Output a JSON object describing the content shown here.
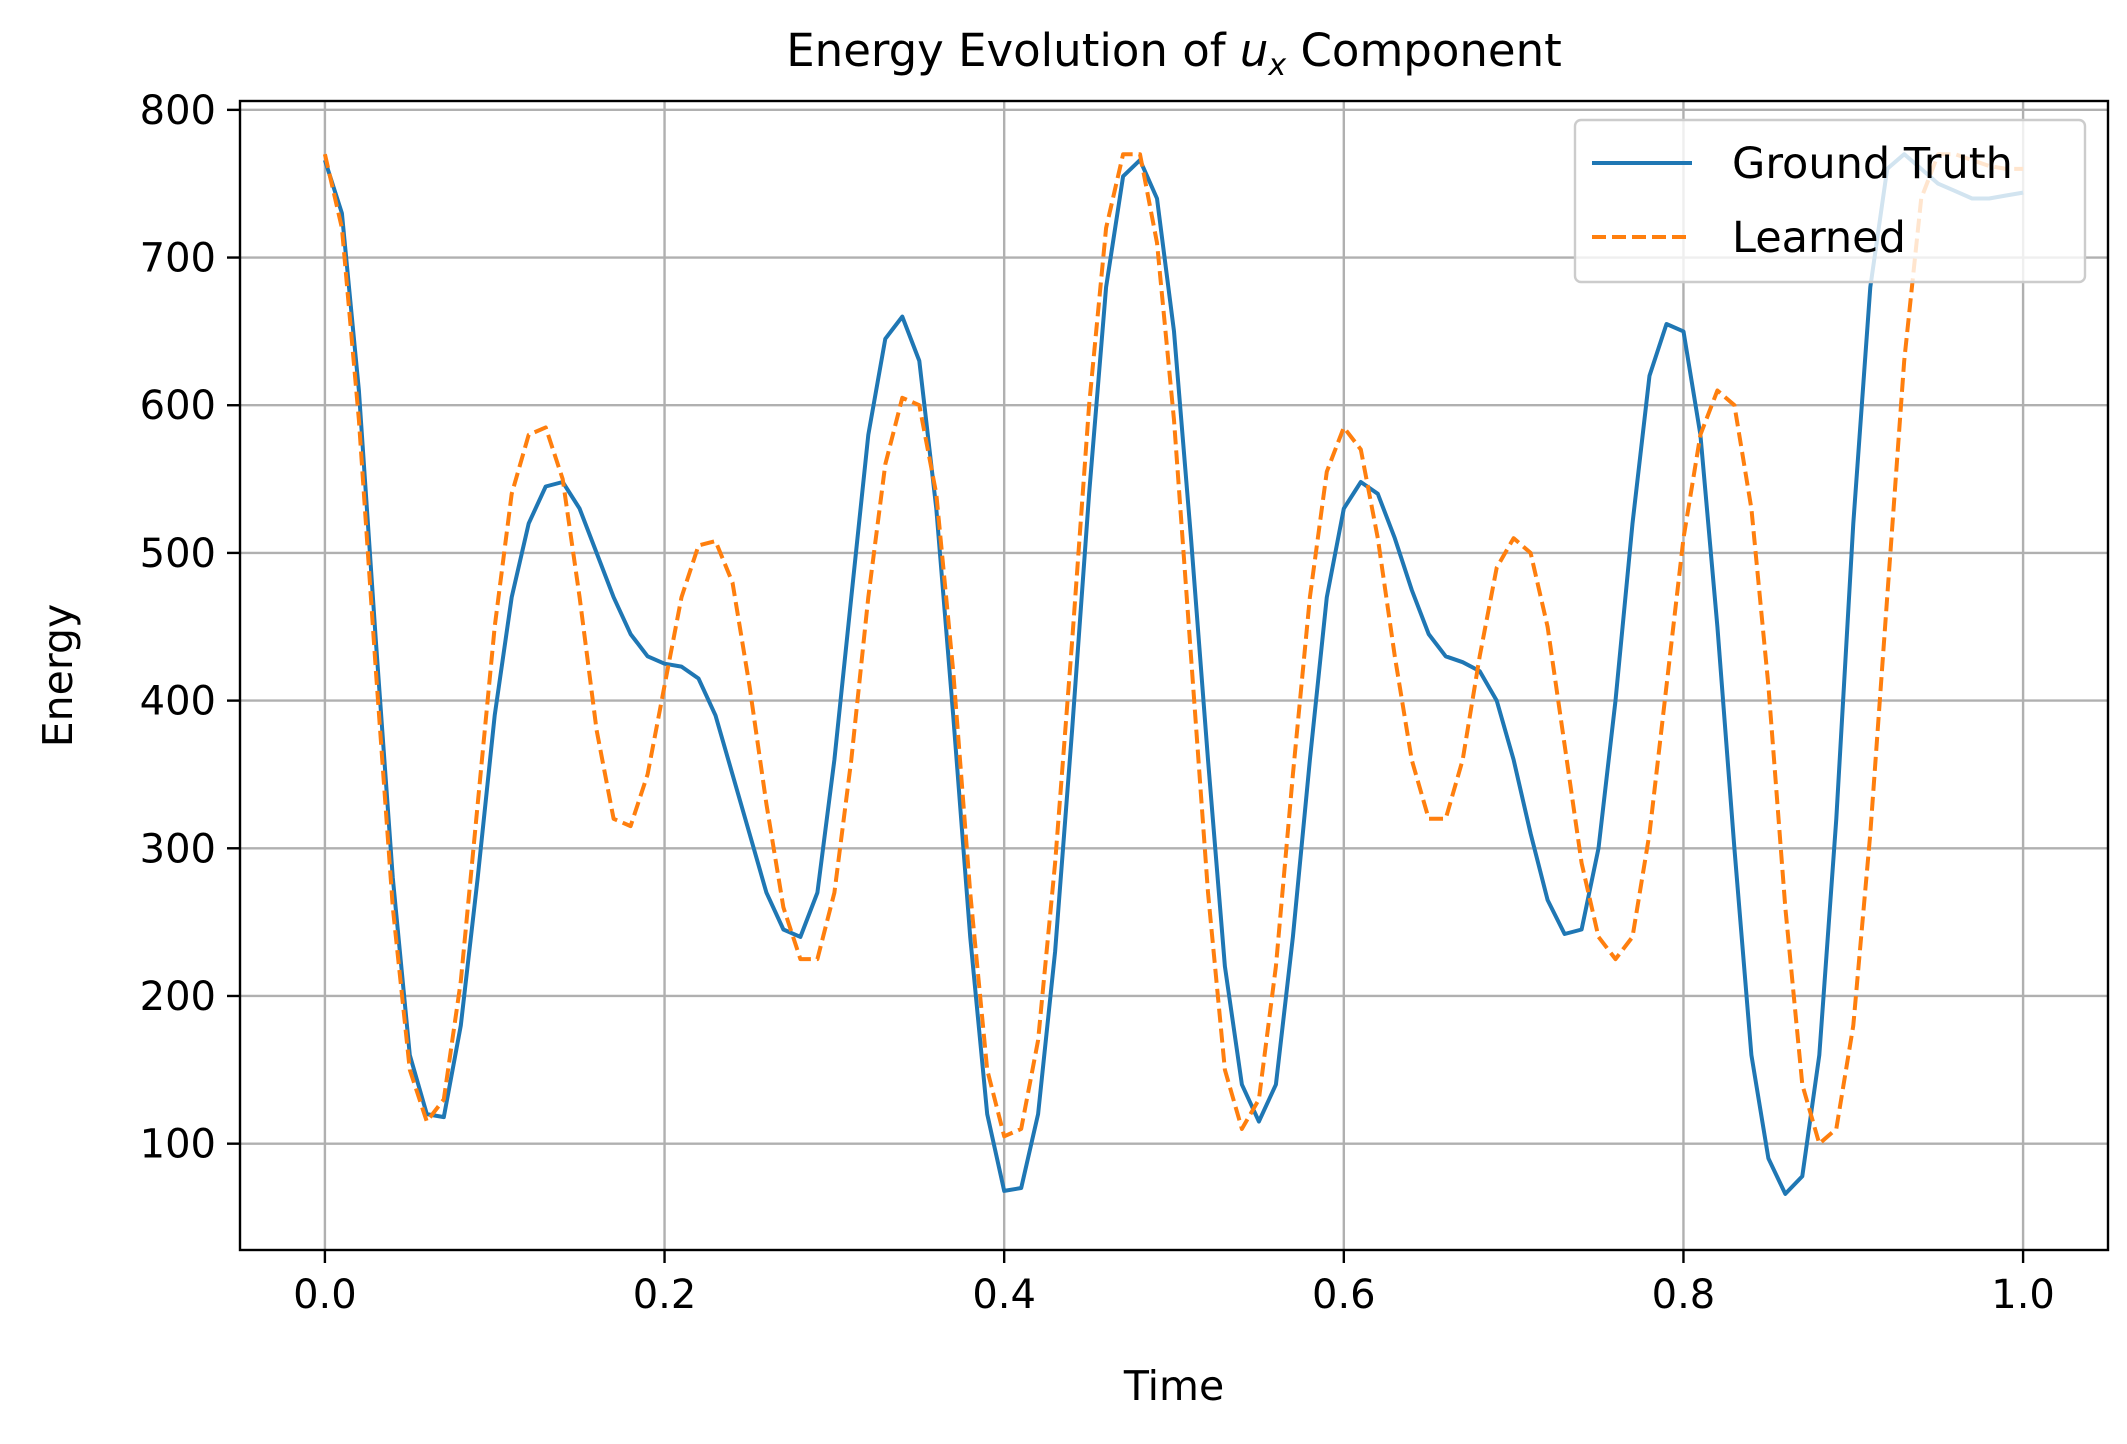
{
  "chart_data": {
    "type": "line",
    "title": {
      "prefix": "Energy Evolution of ",
      "math_var": "u",
      "math_sub": "x",
      "suffix": " Component"
    },
    "xlabel": "Time",
    "ylabel": "Energy",
    "xlim": [
      -0.05,
      1.05
    ],
    "ylim": [
      28,
      806
    ],
    "xticks": [
      0.0,
      0.2,
      0.4,
      0.6,
      0.8,
      1.0
    ],
    "xtick_labels": [
      "0.0",
      "0.2",
      "0.4",
      "0.6",
      "0.8",
      "1.0"
    ],
    "yticks": [
      100,
      200,
      300,
      400,
      500,
      600,
      700,
      800
    ],
    "ytick_labels": [
      "100",
      "200",
      "300",
      "400",
      "500",
      "600",
      "700",
      "800"
    ],
    "grid": true,
    "legend_position": "top-right",
    "series": [
      {
        "name": "Ground Truth",
        "color": "#1f77b4",
        "dash": "solid",
        "x": [
          0.0,
          0.01,
          0.02,
          0.03,
          0.04,
          0.05,
          0.06,
          0.07,
          0.08,
          0.09,
          0.1,
          0.11,
          0.12,
          0.13,
          0.14,
          0.15,
          0.16,
          0.17,
          0.18,
          0.19,
          0.2,
          0.21,
          0.22,
          0.23,
          0.24,
          0.25,
          0.26,
          0.27,
          0.28,
          0.29,
          0.3,
          0.31,
          0.32,
          0.33,
          0.34,
          0.35,
          0.36,
          0.37,
          0.38,
          0.39,
          0.4,
          0.41,
          0.42,
          0.43,
          0.44,
          0.45,
          0.46,
          0.47,
          0.48,
          0.49,
          0.5,
          0.51,
          0.52,
          0.53,
          0.54,
          0.55,
          0.56,
          0.57,
          0.58,
          0.59,
          0.6,
          0.61,
          0.62,
          0.63,
          0.64,
          0.65,
          0.66,
          0.67,
          0.68,
          0.69,
          0.7,
          0.71,
          0.72,
          0.73,
          0.74,
          0.75,
          0.76,
          0.77,
          0.78,
          0.79,
          0.8,
          0.81,
          0.82,
          0.83,
          0.84,
          0.85,
          0.86,
          0.87,
          0.88,
          0.89,
          0.9,
          0.91,
          0.92,
          0.93,
          0.94,
          0.95,
          0.96,
          0.97,
          0.98,
          0.99,
          1.0
        ],
        "y": [
          766,
          730,
          610,
          440,
          280,
          160,
          120,
          118,
          180,
          280,
          390,
          470,
          520,
          545,
          548,
          530,
          500,
          470,
          445,
          430,
          425,
          423,
          415,
          390,
          350,
          310,
          270,
          245,
          240,
          270,
          360,
          470,
          580,
          645,
          660,
          630,
          530,
          390,
          240,
          120,
          68,
          70,
          120,
          230,
          380,
          540,
          680,
          755,
          766,
          740,
          650,
          510,
          360,
          220,
          140,
          115,
          140,
          240,
          360,
          470,
          530,
          548,
          540,
          510,
          475,
          445,
          430,
          426,
          420,
          400,
          360,
          310,
          265,
          242,
          245,
          300,
          400,
          520,
          620,
          655,
          650,
          580,
          450,
          300,
          160,
          90,
          66,
          78,
          160,
          320,
          520,
          680,
          760,
          770,
          760,
          750,
          745,
          740,
          740,
          742,
          744
        ]
      },
      {
        "name": "Learned",
        "color": "#ff7f0e",
        "dash": "dashed",
        "x": [
          0.0,
          0.01,
          0.02,
          0.03,
          0.04,
          0.05,
          0.06,
          0.07,
          0.08,
          0.09,
          0.1,
          0.11,
          0.12,
          0.13,
          0.14,
          0.15,
          0.16,
          0.17,
          0.18,
          0.19,
          0.2,
          0.21,
          0.22,
          0.23,
          0.24,
          0.25,
          0.26,
          0.27,
          0.28,
          0.29,
          0.3,
          0.31,
          0.32,
          0.33,
          0.34,
          0.35,
          0.36,
          0.37,
          0.38,
          0.39,
          0.4,
          0.41,
          0.42,
          0.43,
          0.44,
          0.45,
          0.46,
          0.47,
          0.48,
          0.49,
          0.5,
          0.51,
          0.52,
          0.53,
          0.54,
          0.55,
          0.56,
          0.57,
          0.58,
          0.59,
          0.6,
          0.61,
          0.62,
          0.63,
          0.64,
          0.65,
          0.66,
          0.67,
          0.68,
          0.69,
          0.7,
          0.71,
          0.72,
          0.73,
          0.74,
          0.75,
          0.76,
          0.77,
          0.78,
          0.79,
          0.8,
          0.81,
          0.82,
          0.83,
          0.84,
          0.85,
          0.86,
          0.87,
          0.88,
          0.89,
          0.9,
          0.91,
          0.92,
          0.93,
          0.94,
          0.95,
          0.96,
          0.97,
          0.98,
          0.99,
          1.0
        ],
        "y": [
          770,
          720,
          590,
          420,
          260,
          150,
          115,
          130,
          210,
          330,
          450,
          540,
          580,
          585,
          550,
          470,
          380,
          320,
          315,
          350,
          410,
          470,
          505,
          508,
          480,
          410,
          330,
          260,
          225,
          225,
          270,
          360,
          470,
          560,
          605,
          600,
          540,
          420,
          270,
          150,
          105,
          110,
          170,
          290,
          440,
          600,
          720,
          770,
          770,
          710,
          590,
          430,
          270,
          150,
          110,
          130,
          220,
          350,
          470,
          555,
          585,
          570,
          510,
          430,
          360,
          320,
          320,
          360,
          430,
          490,
          510,
          500,
          450,
          370,
          290,
          240,
          225,
          240,
          310,
          410,
          510,
          580,
          610,
          600,
          530,
          410,
          260,
          140,
          100,
          110,
          180,
          310,
          470,
          630,
          740,
          770,
          770,
          766,
          762,
          760,
          760
        ]
      }
    ]
  }
}
